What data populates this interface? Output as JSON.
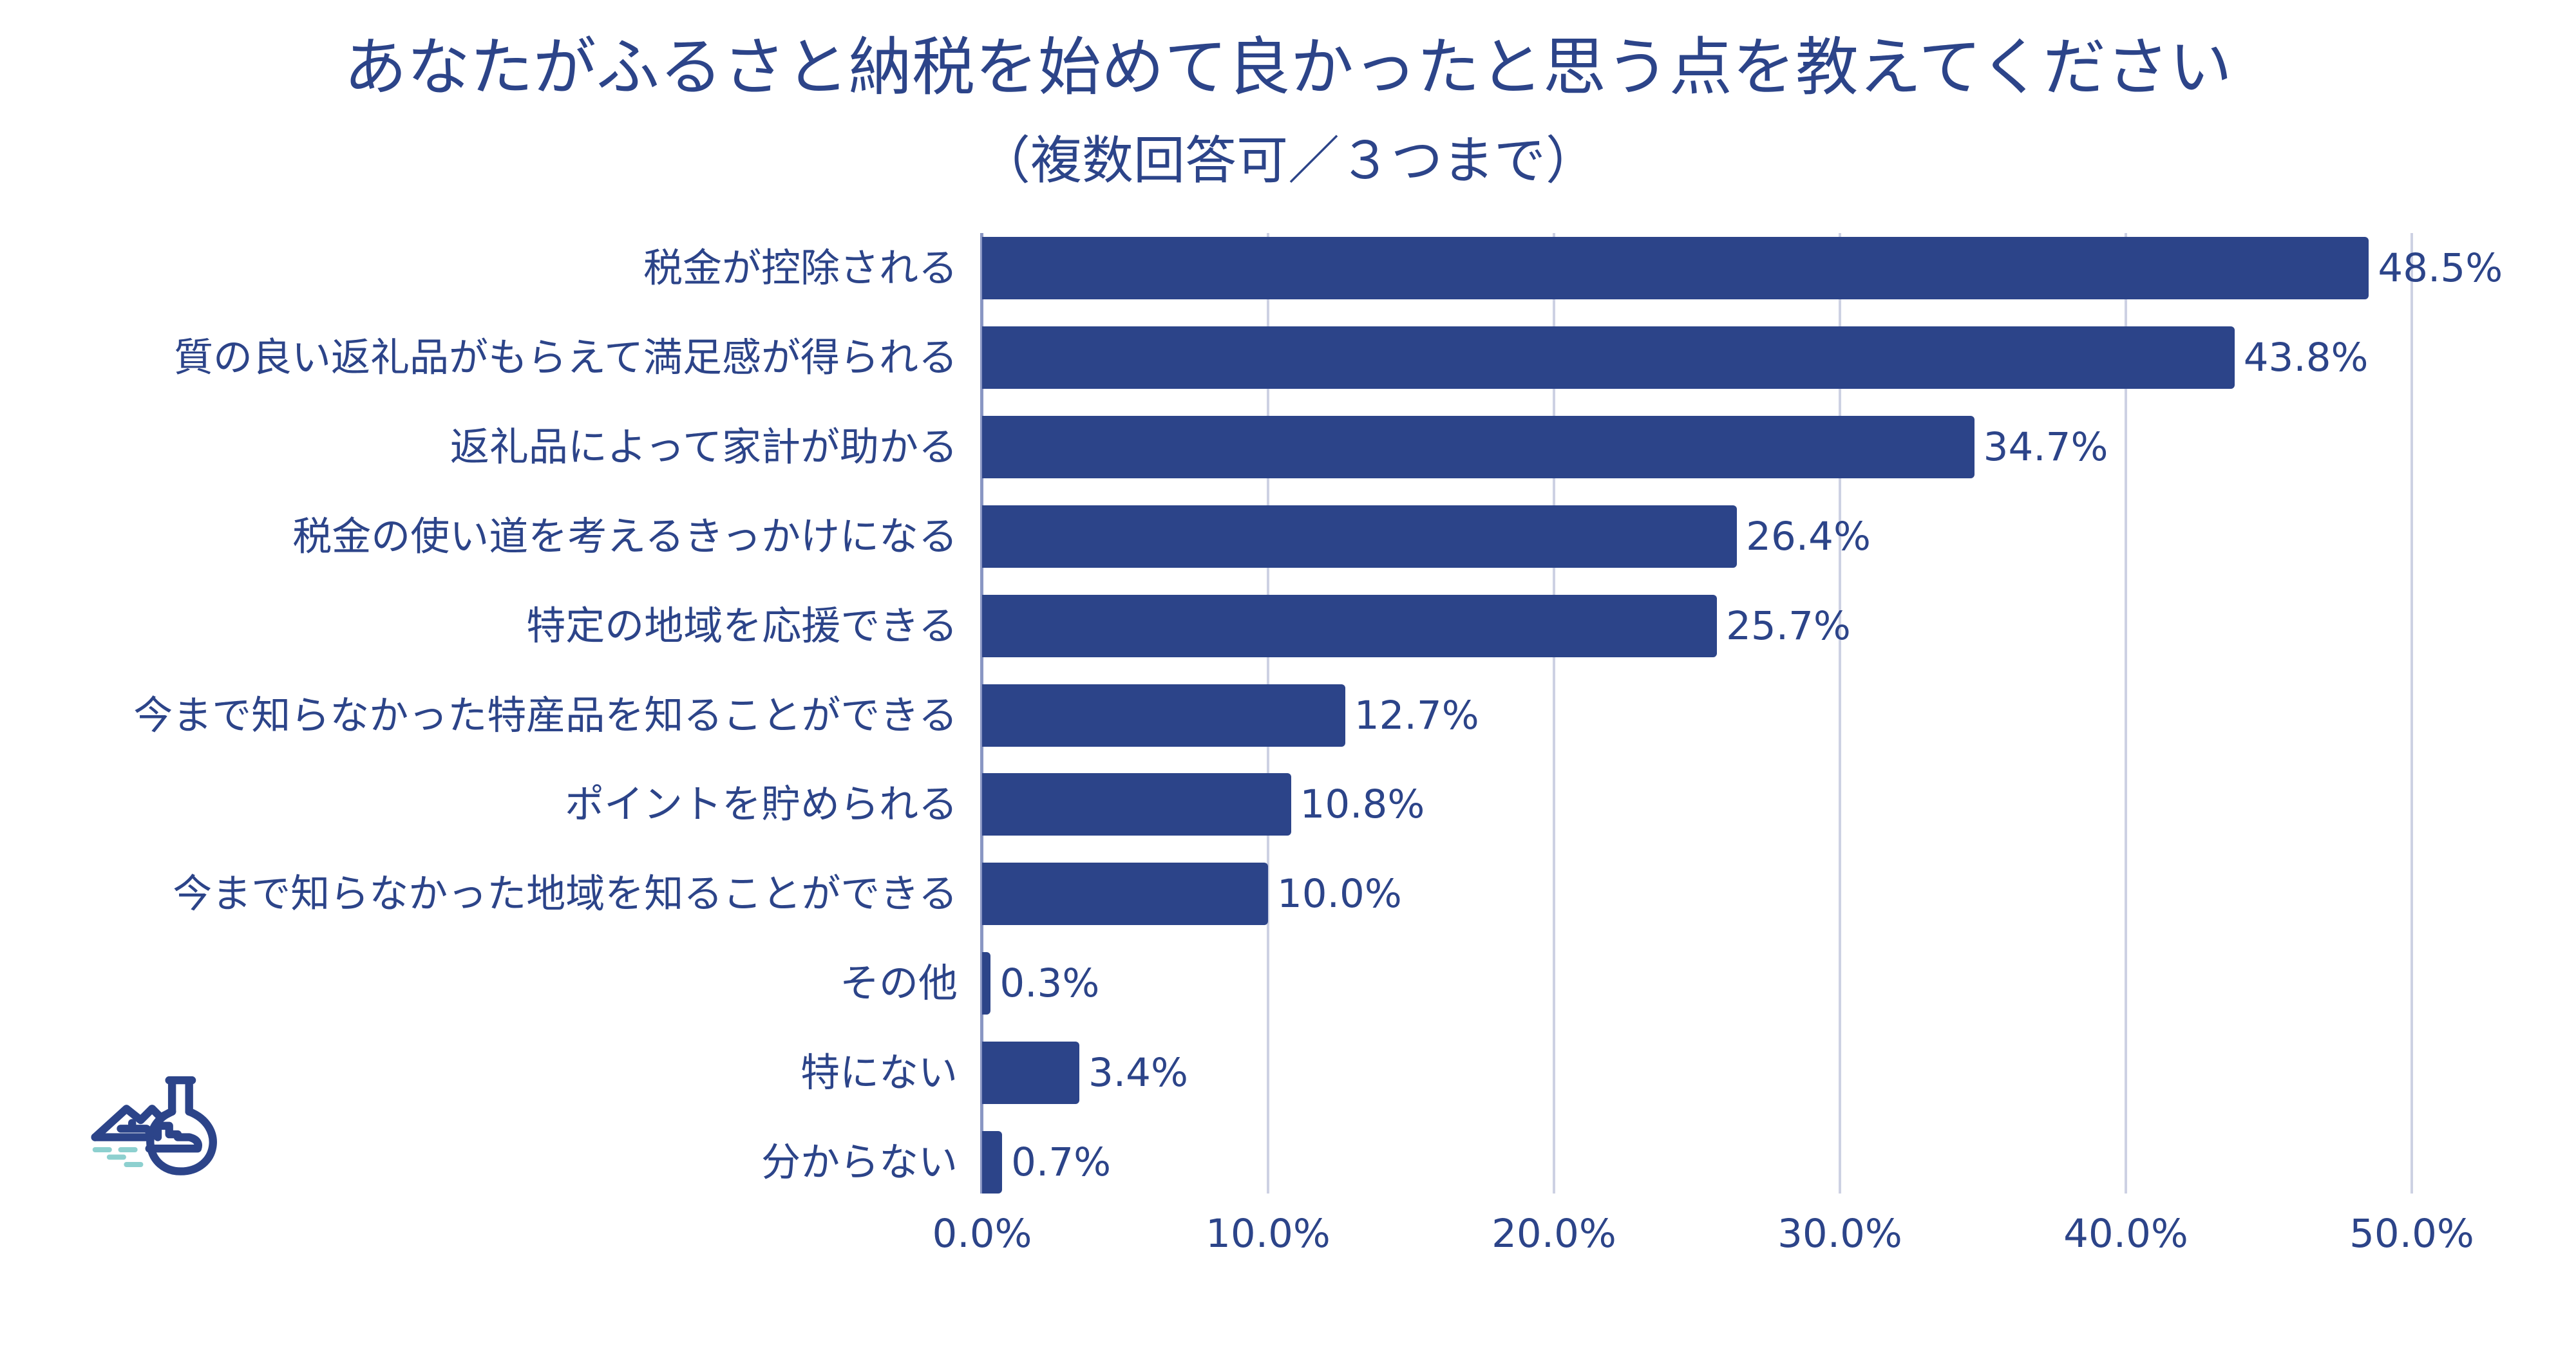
{
  "chart_data": {
    "type": "bar",
    "orientation": "horizontal",
    "title": "あなたがふるさと納税を始めて良かったと思う点を教えてください",
    "subtitle": "（複数回答可／３つまで）",
    "categories": [
      "税金が控除される",
      "質の良い返礼品がもらえて満足感が得られる",
      "返礼品によって家計が助かる",
      "税金の使い道を考えるきっかけになる",
      "特定の地域を応援できる",
      "今まで知らなかった特産品を知ることができる",
      "ポイントを貯められる",
      "今まで知らなかった地域を知ることができる",
      "その他",
      "特にない",
      "分からない"
    ],
    "values": [
      48.5,
      43.8,
      34.7,
      26.4,
      25.7,
      12.7,
      10.8,
      10.0,
      0.3,
      3.4,
      0.7
    ],
    "value_labels": [
      "48.5%",
      "43.8%",
      "34.7%",
      "26.4%",
      "25.7%",
      "12.7%",
      "10.8%",
      "10.0%",
      "0.3%",
      "3.4%",
      "0.7%"
    ],
    "xlim": [
      0,
      50
    ],
    "x_ticks": [
      0,
      10,
      20,
      30,
      40,
      50
    ],
    "x_tick_labels": [
      "0.0%",
      "10.0%",
      "20.0%",
      "30.0%",
      "40.0%",
      "50.0%"
    ],
    "xlabel": "",
    "ylabel": "",
    "grid": "vertical",
    "bar_color": "#2c4489",
    "grid_color": "#cdd1e3",
    "logo_colors": {
      "primary": "#2c4489",
      "accent": "#8dd0cf"
    }
  }
}
